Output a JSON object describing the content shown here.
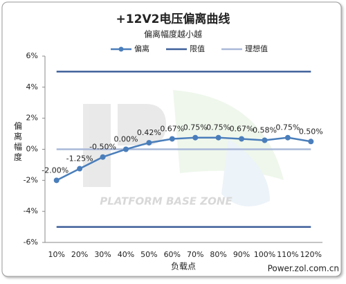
{
  "chart_data": {
    "type": "line",
    "title": "+12V2电压偏离曲线",
    "subtitle": "偏离幅度越小越",
    "y_label": "偏离幅度",
    "x_label": "负载点",
    "watermark": "PLATFORM BASE ZONE",
    "source": "Power.zol.com.cn",
    "categories": [
      "10%",
      "20%",
      "30%",
      "40%",
      "50%",
      "60%",
      "70%",
      "80%",
      "90%",
      "100%",
      "110%",
      "120%"
    ],
    "series": [
      {
        "name": "偏离",
        "color": "#4a7ebb",
        "values": [
          -2.0,
          -1.25,
          -0.5,
          0.0,
          0.42,
          0.67,
          0.75,
          0.75,
          0.67,
          0.58,
          0.75,
          0.5
        ],
        "value_labels": [
          "-2.00%",
          "-1.25%",
          "-0.50%",
          "0.00%",
          "0.42%",
          "0.67%",
          "0.75%",
          "0.75%",
          "0.67%",
          "0.58%",
          "0.75%",
          "0.50%"
        ]
      }
    ],
    "reference_lines": [
      {
        "name": "限值",
        "color": "#3e5f9a",
        "values": [
          5,
          -5
        ]
      },
      {
        "name": "理想值",
        "color": "#a9b8d8",
        "values": [
          0
        ]
      }
    ],
    "ylim": [
      -6,
      6
    ],
    "yticks": [
      {
        "value": -6,
        "label": "-6%"
      },
      {
        "value": -4,
        "label": "-4%"
      },
      {
        "value": -2,
        "label": "-2%"
      },
      {
        "value": 0,
        "label": "0%"
      },
      {
        "value": 2,
        "label": "2%"
      },
      {
        "value": 4,
        "label": "4%"
      },
      {
        "value": 6,
        "label": "6%"
      }
    ],
    "legend": "top"
  }
}
